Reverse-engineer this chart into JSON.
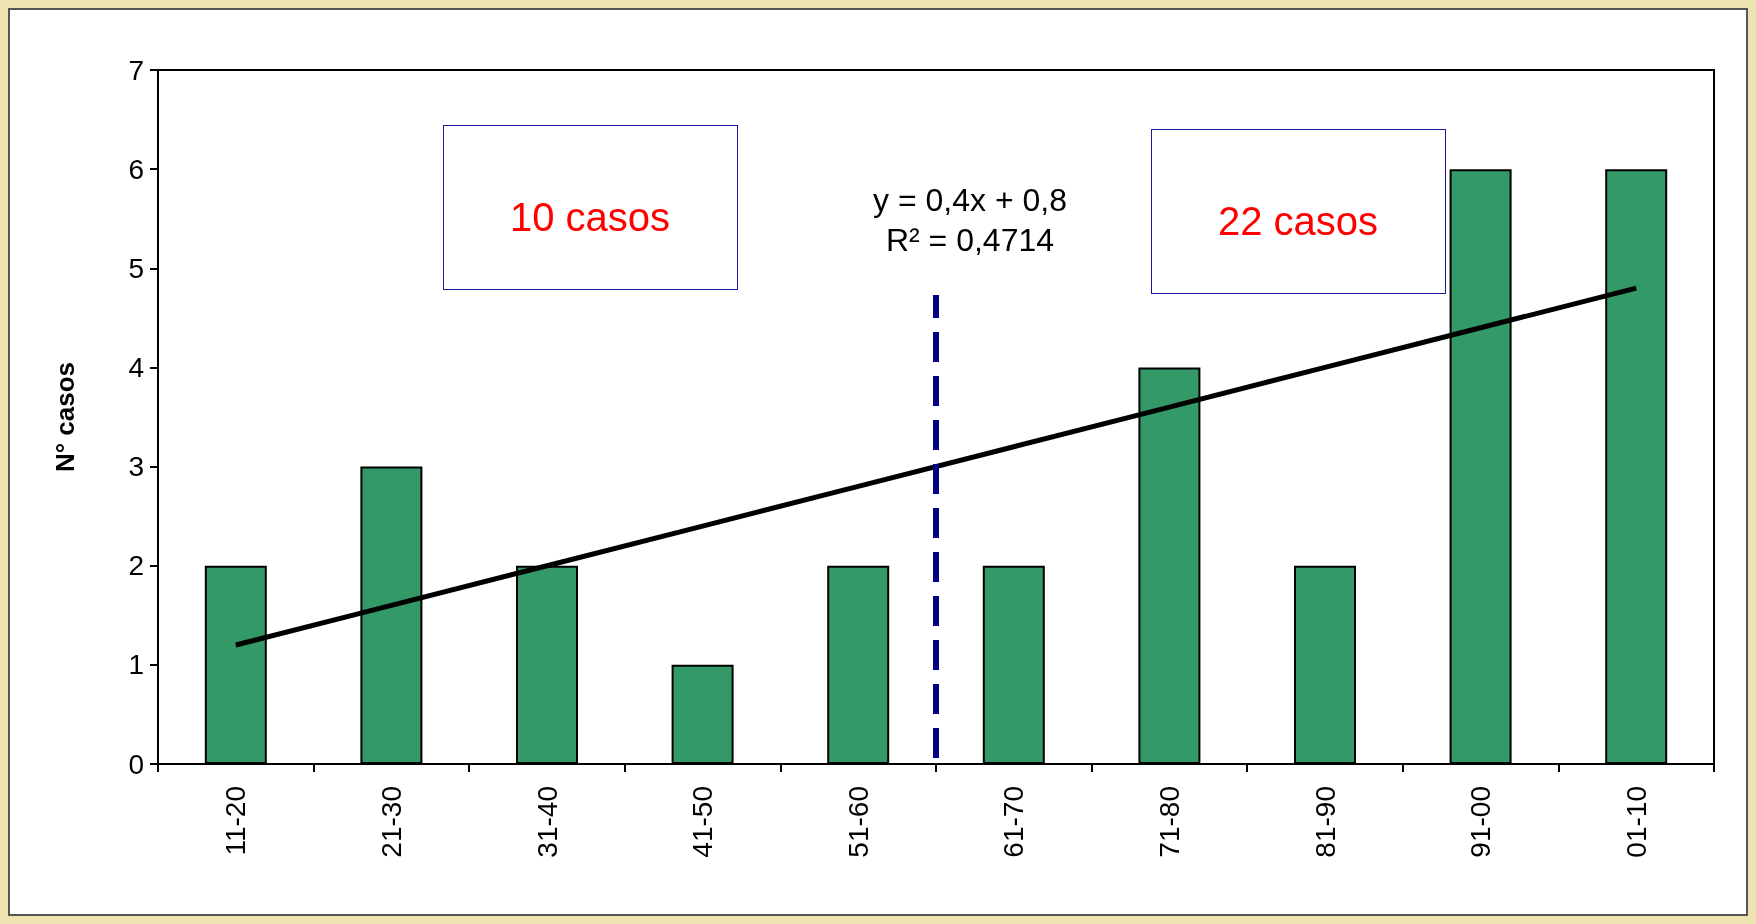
{
  "chart_data": {
    "type": "bar",
    "ylabel": "N° casos",
    "categories": [
      "11-20",
      "21-30",
      "31-40",
      "41-50",
      "51-60",
      "61-70",
      "71-80",
      "81-90",
      "91-00",
      "01-10"
    ],
    "ylim": [
      0,
      7
    ],
    "yticks": [
      0,
      1,
      2,
      3,
      4,
      5,
      6,
      7
    ],
    "series": [
      {
        "color": "#339966",
        "values": [
          2,
          3,
          2,
          1,
          2,
          2,
          4,
          2,
          6,
          6
        ]
      },
      {
        "type": "line",
        "color": "#000000",
        "values": [
          1.2,
          1.6,
          2.0,
          2.4,
          2.8,
          3.2,
          3.6,
          4.0,
          4.4,
          4.8
        ]
      }
    ],
    "marker": "none",
    "annotations": [
      "y = 0,4x + 0,8\nR² = 0,4714",
      "10 casos",
      "22 casos"
    ]
  }
}
